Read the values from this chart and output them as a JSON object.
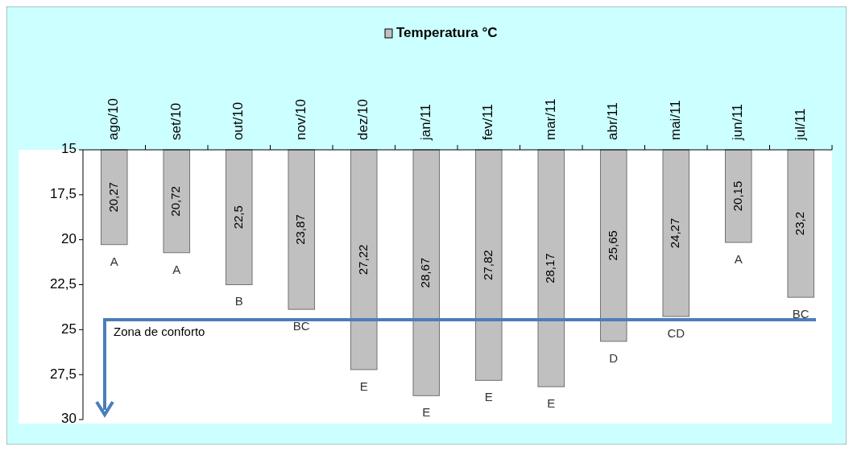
{
  "chart_data": {
    "type": "bar",
    "categories": [
      "ago/10",
      "set/10",
      "out/10",
      "nov/10",
      "dez/10",
      "jan/11",
      "fev/11",
      "mar/11",
      "abr/11",
      "mai/11",
      "jun/11",
      "jul/11"
    ],
    "series": [
      {
        "name": "Temperatura  °C",
        "color": "#c0c0c0",
        "values": [
          20.27,
          20.72,
          22.5,
          23.87,
          27.22,
          28.67,
          27.82,
          28.17,
          25.65,
          24.27,
          20.15,
          23.2
        ],
        "value_labels": [
          "20,27",
          "20,72",
          "22,5",
          "23,87",
          "27,22",
          "28,67",
          "27,82",
          "28,17",
          "25,65",
          "24,27",
          "20,15",
          "23,2"
        ]
      }
    ],
    "ylim": [
      30,
      15
    ],
    "yticks": [
      {
        "value": 15,
        "label": "15"
      },
      {
        "value": 17.5,
        "label": "17,5"
      },
      {
        "value": 20,
        "label": "20"
      },
      {
        "value": 22.5,
        "label": "22,5"
      },
      {
        "value": 25,
        "label": "25"
      },
      {
        "value": 27.5,
        "label": "27,5"
      },
      {
        "value": 30,
        "label": "30"
      }
    ],
    "ref_lines": [
      {
        "axis": "y",
        "value": 24.45,
        "label": "Zona de conforto",
        "color": "#4a7ebb"
      }
    ],
    "annotations": [
      {
        "text": "A",
        "x": "ago/10",
        "y": 20.27
      },
      {
        "text": "A",
        "x": "set/10",
        "y": 20.72
      },
      {
        "text": "B",
        "x": "out/10",
        "y": 22.5
      },
      {
        "text": "BC",
        "x": "nov/10",
        "y": 23.87
      },
      {
        "text": "E",
        "x": "dez/10",
        "y": 27.22
      },
      {
        "text": "E",
        "x": "jan/11",
        "y": 28.67
      },
      {
        "text": "E",
        "x": "fev/11",
        "y": 27.82
      },
      {
        "text": "E",
        "x": "mar/11",
        "y": 28.17
      },
      {
        "text": "D",
        "x": "abr/11",
        "y": 25.65
      },
      {
        "text": "CD",
        "x": "mai/11",
        "y": 24.27
      },
      {
        "text": "A",
        "x": "jun/11",
        "y": 20.15
      },
      {
        "text": "BC",
        "x": "jul/11",
        "y": 23.2
      }
    ],
    "legend": "top",
    "grid": false
  }
}
